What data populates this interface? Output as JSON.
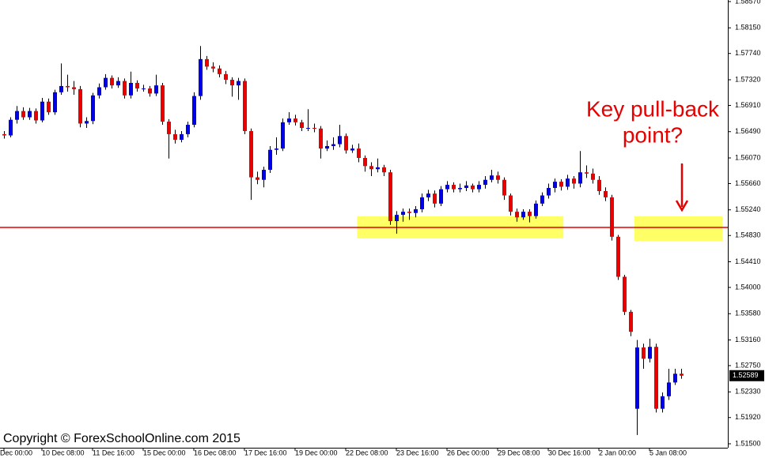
{
  "chart_data": {
    "type": "candlestick",
    "categories": [
      "Dec 00:00",
      null,
      null,
      null,
      null,
      null,
      "10 Dec 08:00",
      null,
      null,
      null,
      null,
      null,
      null,
      null,
      "11 Dec 16:00",
      null,
      null,
      null,
      null,
      null,
      null,
      null,
      "15 Dec 00:00",
      null,
      null,
      null,
      null,
      null,
      null,
      null,
      "16 Dec 08:00",
      null,
      null,
      null,
      null,
      null,
      null,
      null,
      "17 Dec 16:00",
      null,
      null,
      null,
      null,
      null,
      null,
      null,
      "19 Dec 00:00",
      null,
      null,
      null,
      null,
      null,
      null,
      null,
      "22 Dec 08:00",
      null,
      null,
      null,
      null,
      null,
      null,
      null,
      "23 Dec 16:00",
      null,
      null,
      null,
      null,
      null,
      null,
      null,
      "26 Dec 00:00",
      null,
      null,
      null,
      null,
      null,
      null,
      null,
      "29 Dec 08:00",
      null,
      null,
      null,
      null,
      null,
      null,
      null,
      "30 Dec 16:00",
      null,
      null,
      null,
      null,
      null,
      null,
      null,
      "2 Jan 00:00",
      null,
      null,
      null,
      null,
      null,
      null,
      null,
      "5 Jan 08:00",
      null,
      null,
      null,
      null,
      null
    ],
    "open": [
      1.5645,
      1.5643,
      1.5668,
      1.5682,
      1.5672,
      1.5682,
      1.5667,
      1.5697,
      1.568,
      1.5712,
      1.5722,
      1.572,
      1.5717,
      1.5662,
      1.5666,
      1.5707,
      1.572,
      1.5735,
      1.5723,
      1.573,
      1.5707,
      1.5727,
      1.5718,
      1.5718,
      1.571,
      1.5723,
      1.5665,
      1.5645,
      1.5636,
      1.5645,
      1.566,
      1.5706,
      1.5765,
      1.5753,
      1.575,
      1.5741,
      1.5732,
      1.5723,
      1.573,
      1.565,
      1.5576,
      1.5572,
      1.5588,
      1.562,
      1.5622,
      1.5664,
      1.567,
      1.5664,
      1.5655,
      1.5655,
      1.5654,
      1.5622,
      1.5626,
      1.5629,
      1.5642,
      1.5619,
      1.5622,
      1.5607,
      1.5594,
      1.5589,
      1.5592,
      1.5584,
      1.5506,
      1.5516,
      1.5521,
      1.5519,
      1.5525,
      1.5544,
      1.555,
      1.5534,
      1.5557,
      1.5564,
      1.5557,
      1.5559,
      1.5563,
      1.5557,
      1.5564,
      1.5572,
      1.5579,
      1.5572,
      1.5547,
      1.5521,
      1.5512,
      1.5521,
      1.5514,
      1.5534,
      1.5547,
      1.5559,
      1.5569,
      1.5561,
      1.5574,
      1.5566,
      1.5584,
      1.5582,
      1.5572,
      1.5554,
      1.5544,
      1.5481,
      1.5417,
      1.5361,
      1.5206,
      1.5304,
      1.5286,
      1.5305,
      1.5206,
      1.5226,
      1.5248,
      1.5262
    ],
    "high": [
      1.565,
      1.5672,
      1.569,
      1.5688,
      1.5687,
      1.5686,
      1.5703,
      1.5702,
      1.5716,
      1.5758,
      1.574,
      1.573,
      1.5722,
      1.5672,
      1.5711,
      1.5726,
      1.5741,
      1.5739,
      1.5736,
      1.5734,
      1.5745,
      1.5731,
      1.5724,
      1.5722,
      1.574,
      1.5727,
      1.5669,
      1.5652,
      1.565,
      1.5665,
      1.5712,
      1.5786,
      1.577,
      1.576,
      1.5755,
      1.5746,
      1.5736,
      1.5735,
      1.5734,
      1.5654,
      1.5585,
      1.5593,
      1.5626,
      1.564,
      1.567,
      1.568,
      1.5676,
      1.5668,
      1.5685,
      1.5662,
      1.5658,
      1.5635,
      1.564,
      1.566,
      1.5646,
      1.5628,
      1.563,
      1.5611,
      1.56,
      1.5606,
      1.5596,
      1.5588,
      1.5522,
      1.5526,
      1.5526,
      1.553,
      1.555,
      1.5556,
      1.5555,
      1.5562,
      1.557,
      1.5568,
      1.5566,
      1.557,
      1.5566,
      1.557,
      1.5578,
      1.5588,
      1.5585,
      1.5576,
      1.555,
      1.5526,
      1.5525,
      1.5525,
      1.5539,
      1.5552,
      1.5566,
      1.5574,
      1.5573,
      1.558,
      1.5578,
      1.5618,
      1.5595,
      1.559,
      1.5578,
      1.556,
      1.5548,
      1.5484,
      1.542,
      1.5364,
      1.5316,
      1.531,
      1.5318,
      1.531,
      1.5232,
      1.527,
      1.527,
      1.527
    ],
    "low": [
      1.5638,
      1.564,
      1.5662,
      1.5668,
      1.5668,
      1.5662,
      1.5664,
      1.5676,
      1.5676,
      1.5708,
      1.5713,
      1.5708,
      1.5656,
      1.5655,
      1.5661,
      1.5702,
      1.5716,
      1.5718,
      1.5719,
      1.5702,
      1.5702,
      1.5713,
      1.5713,
      1.5705,
      1.5706,
      1.566,
      1.5606,
      1.563,
      1.5632,
      1.564,
      1.5656,
      1.57,
      1.5748,
      1.5744,
      1.5736,
      1.5725,
      1.5705,
      1.57,
      1.5645,
      1.554,
      1.5565,
      1.556,
      1.5583,
      1.5612,
      1.5618,
      1.566,
      1.5659,
      1.565,
      1.565,
      1.5648,
      1.5606,
      1.5618,
      1.562,
      1.5624,
      1.5614,
      1.5615,
      1.56,
      1.5585,
      1.5578,
      1.5584,
      1.5578,
      1.55,
      1.5486,
      1.5505,
      1.5508,
      1.5512,
      1.552,
      1.5538,
      1.5528,
      1.553,
      1.5552,
      1.5552,
      1.5552,
      1.5554,
      1.5552,
      1.5552,
      1.5558,
      1.5568,
      1.5566,
      1.554,
      1.5515,
      1.5505,
      1.5508,
      1.5504,
      1.551,
      1.553,
      1.5542,
      1.5552,
      1.5555,
      1.5556,
      1.5558,
      1.556,
      1.5575,
      1.5566,
      1.5548,
      1.5538,
      1.5475,
      1.5412,
      1.5356,
      1.5322,
      1.5164,
      1.527,
      1.528,
      1.52,
      1.52,
      1.522,
      1.5244,
      1.5254
    ],
    "close": [
      1.5643,
      1.5668,
      1.5682,
      1.5672,
      1.5682,
      1.5667,
      1.5697,
      1.568,
      1.5712,
      1.5722,
      1.572,
      1.5717,
      1.5662,
      1.5666,
      1.5707,
      1.572,
      1.5735,
      1.5723,
      1.573,
      1.5707,
      1.5727,
      1.5718,
      1.5718,
      1.571,
      1.5723,
      1.5665,
      1.5645,
      1.5636,
      1.5645,
      1.566,
      1.5706,
      1.5765,
      1.5753,
      1.575,
      1.5741,
      1.5732,
      1.5723,
      1.573,
      1.565,
      1.5576,
      1.5572,
      1.5588,
      1.562,
      1.5622,
      1.5664,
      1.567,
      1.5664,
      1.5655,
      1.5655,
      1.5654,
      1.5622,
      1.5626,
      1.5629,
      1.5642,
      1.5619,
      1.5622,
      1.5607,
      1.5594,
      1.5589,
      1.5592,
      1.5584,
      1.5506,
      1.5516,
      1.5521,
      1.5519,
      1.5525,
      1.5544,
      1.555,
      1.5534,
      1.5557,
      1.5564,
      1.5557,
      1.5559,
      1.5563,
      1.5557,
      1.5564,
      1.5572,
      1.5579,
      1.5572,
      1.5547,
      1.5521,
      1.5512,
      1.5521,
      1.5514,
      1.5534,
      1.5547,
      1.5559,
      1.5569,
      1.5561,
      1.5574,
      1.5566,
      1.5584,
      1.5582,
      1.5572,
      1.5554,
      1.5544,
      1.5481,
      1.5417,
      1.5361,
      1.5329,
      1.5304,
      1.5286,
      1.5305,
      1.5206,
      1.5226,
      1.5248,
      1.5262,
      1.52589
    ],
    "up_color": "#0000e6",
    "down_color": "#e60000",
    "ylim": [
      1.51437,
      1.58595
    ],
    "yticks": [
      {
        "value": 1.5857,
        "label": "1.58570"
      },
      {
        "value": 1.5815,
        "label": "1.58150"
      },
      {
        "value": 1.5774,
        "label": "1.57740"
      },
      {
        "value": 1.5732,
        "label": "1.57320"
      },
      {
        "value": 1.5691,
        "label": "1.56910"
      },
      {
        "value": 1.5649,
        "label": "1.56490"
      },
      {
        "value": 1.5607,
        "label": "1.56070"
      },
      {
        "value": 1.5566,
        "label": "1.55660"
      },
      {
        "value": 1.5524,
        "label": "1.55240"
      },
      {
        "value": 1.5483,
        "label": "1.54830"
      },
      {
        "value": 1.5441,
        "label": "1.54410"
      },
      {
        "value": 1.54,
        "label": "1.54000"
      },
      {
        "value": 1.5358,
        "label": "1.53580"
      },
      {
        "value": 1.5316,
        "label": "1.53160"
      },
      {
        "value": 1.5275,
        "label": "1.52750"
      },
      {
        "value": 1.5233,
        "label": "1.52330"
      },
      {
        "value": 1.5192,
        "label": "1.51920"
      },
      {
        "value": 1.515,
        "label": "1.51500"
      }
    ],
    "grid": false,
    "level": {
      "value": 1.54959,
      "color": "#e60000"
    },
    "zones": [
      {
        "x": [
          55.8,
          88.4
        ],
        "y": [
          1.54783,
          1.55136
        ],
        "color": "#ffff66"
      },
      {
        "x": [
          99.6,
          113.5
        ],
        "y": [
          1.54745,
          1.55136
        ],
        "color": "#ffff66"
      }
    ],
    "annotation": [
      "Key pull-back",
      "point?"
    ],
    "copyright": "Copyright © ForexSchoolOnline.com 2015"
  }
}
